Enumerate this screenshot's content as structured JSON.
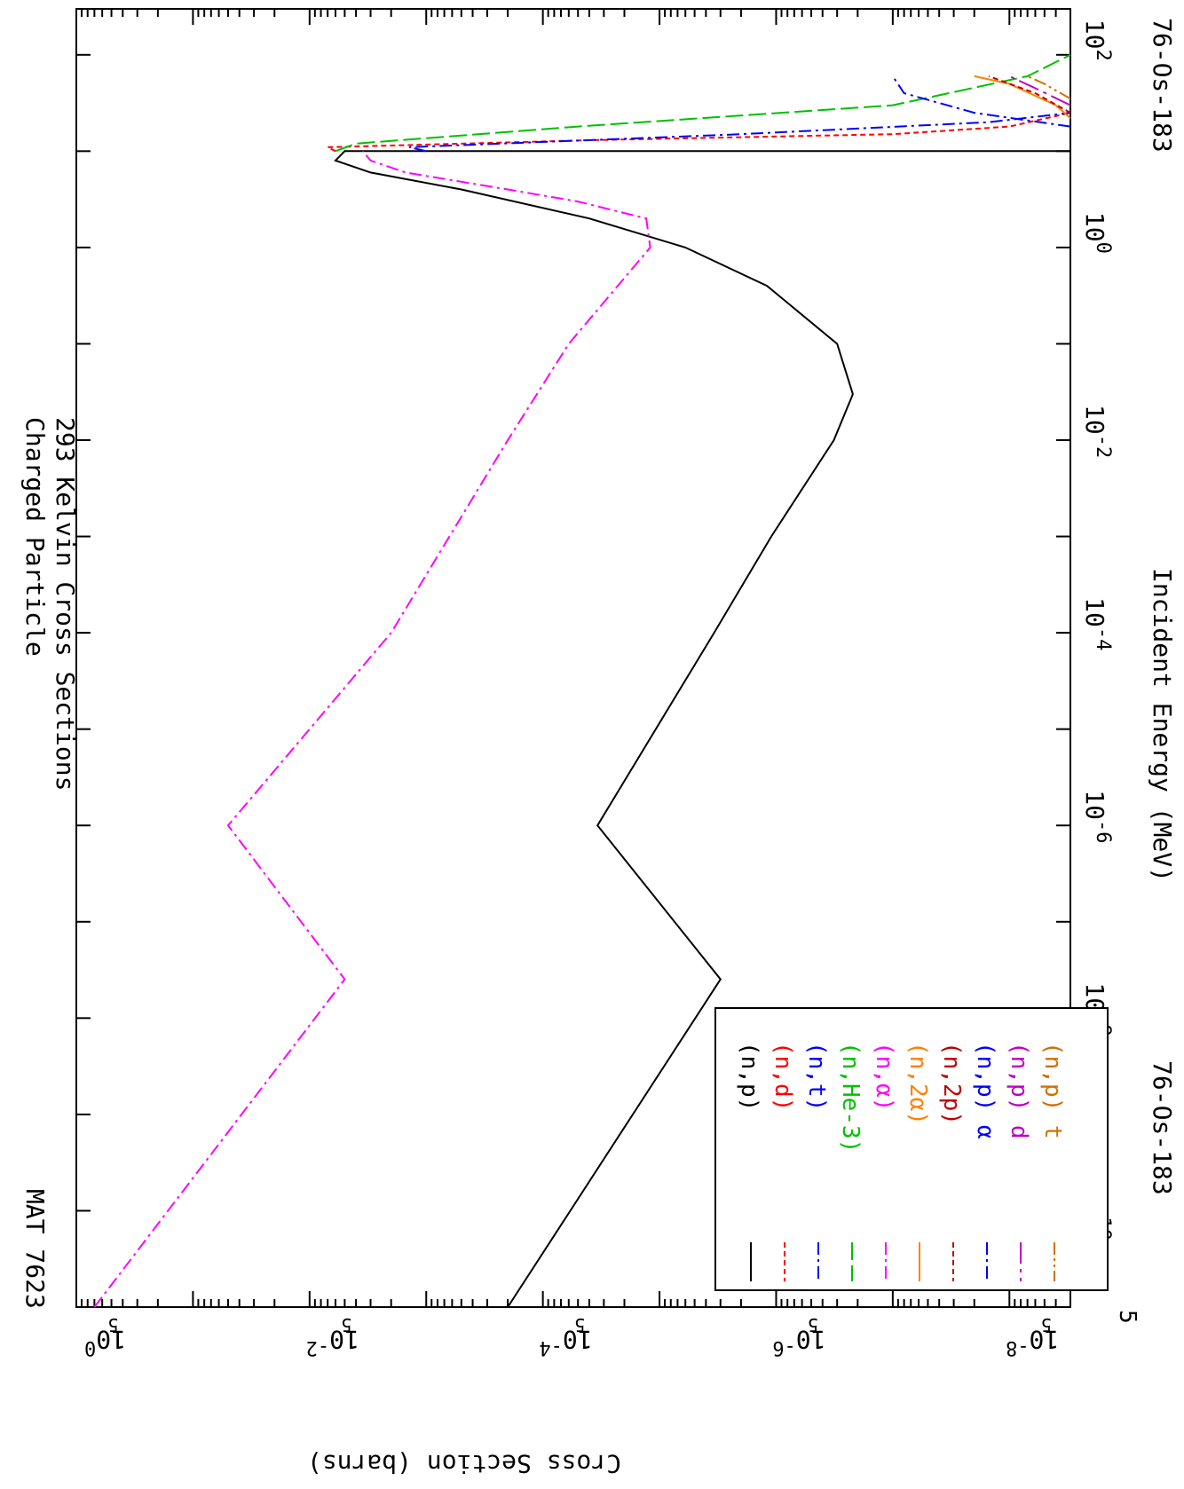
{
  "chart_data": {
    "type": "line",
    "title_line1": "Charged Particle",
    "title_line2": "293 Kelvin Cross Sections",
    "mat_label": "MAT 7623",
    "nuclide_label": "76-Os-183",
    "xlabel": "Incident Energy (MeV)",
    "ylabel": "Cross Section (barns)",
    "x_scale": "log",
    "y_scale": "log",
    "xlim": [
      1e-11,
      300
    ],
    "ylim": [
      3e-09,
      1
    ],
    "x_ticks": [
      {
        "value": 1e-10,
        "base": "10",
        "exp": "-10"
      },
      {
        "value": 1e-08,
        "base": "10",
        "exp": "-8"
      },
      {
        "value": 1e-06,
        "base": "10",
        "exp": "-6"
      },
      {
        "value": 0.0001,
        "base": "10",
        "exp": "-4"
      },
      {
        "value": 0.01,
        "base": "10",
        "exp": "-2"
      },
      {
        "value": 1,
        "base": "10",
        "exp": "0"
      },
      {
        "value": 100,
        "base": "10",
        "exp": "2"
      }
    ],
    "x_corner_label": "5",
    "y_ticks": [
      {
        "value": 1,
        "base": "10",
        "exp": "0"
      },
      {
        "value": 0.01,
        "base": "10",
        "exp": "-2"
      },
      {
        "value": 0.0001,
        "base": "10",
        "exp": "-4"
      },
      {
        "value": 1e-06,
        "base": "10",
        "exp": "-6"
      },
      {
        "value": 1e-08,
        "base": "10",
        "exp": "-8"
      }
    ],
    "y_minor_label": "5",
    "y_minor_label_values": [
      0.5,
      0.005,
      5e-05,
      5e-07,
      5e-09
    ],
    "legend_placement": "lower-left",
    "series": [
      {
        "name": "(n,p)",
        "color": "#000000",
        "dash": "solid",
        "points": [
          [
            1e-11,
            0.0002
          ],
          [
            2.53e-08,
            3e-06
          ],
          [
            1e-06,
            3.4e-05
          ],
          [
            0.0001,
            3.4e-06
          ],
          [
            0.001,
            1.1e-06
          ],
          [
            0.01,
            3.2e-07
          ],
          [
            0.03,
            2.2e-07
          ],
          [
            0.1,
            3e-07
          ],
          [
            0.4,
            1.2e-06
          ],
          [
            1,
            6e-06
          ],
          [
            2,
            4e-05
          ],
          [
            4,
            0.0005
          ],
          [
            6,
            0.003
          ],
          [
            8,
            0.006
          ],
          [
            10,
            0.005
          ],
          [
            10,
            3e-09
          ]
        ]
      },
      {
        "name": "(n,d)",
        "color": "#ff0000",
        "dash": "short",
        "points": [
          [
            10,
            0.006
          ],
          [
            11,
            0.007
          ],
          [
            13,
            4e-05
          ],
          [
            15,
            1e-07
          ],
          [
            18,
            1e-08
          ],
          [
            25,
            3e-09
          ]
        ]
      },
      {
        "name": "(n,t)",
        "color": "#0000ff",
        "dash": "dashdot",
        "points": [
          [
            10,
            0.001
          ],
          [
            11,
            0.0014
          ],
          [
            15,
            2e-06
          ],
          [
            20,
            1.5e-08
          ],
          [
            25,
            3e-09
          ]
        ]
      },
      {
        "name": "(n,He-3)",
        "color": "#00c000",
        "dash": "long",
        "points": [
          [
            10,
            0.006
          ],
          [
            12,
            0.004
          ],
          [
            18,
            5e-05
          ],
          [
            30,
            1e-07
          ],
          [
            60,
            7e-09
          ],
          [
            100,
            3e-09
          ]
        ]
      },
      {
        "name": "(n,α)",
        "color": "#ff00ff",
        "dash": "dashdot",
        "points": [
          [
            1e-11,
            0.7
          ],
          [
            2.53e-08,
            0.005
          ],
          [
            1e-06,
            0.05
          ],
          [
            0.0001,
            0.002
          ],
          [
            0.01,
            0.0002
          ],
          [
            0.1,
            6e-05
          ],
          [
            1,
            1.2e-05
          ],
          [
            2,
            1.3e-05
          ],
          [
            3,
            5e-05
          ],
          [
            4,
            0.0002
          ],
          [
            6,
            0.0015
          ],
          [
            8,
            0.003
          ],
          [
            10,
            0.0035
          ]
        ]
      },
      {
        "name": "(n,2α)",
        "color": "#ff8000",
        "dash": "solid",
        "points": [
          [
            22,
            3e-09
          ],
          [
            30,
            4e-09
          ],
          [
            50,
            1e-08
          ],
          [
            60,
            2e-08
          ]
        ]
      },
      {
        "name": "(n,2p)",
        "color": "#c00000",
        "dash": "short",
        "points": [
          [
            25,
            3e-09
          ],
          [
            40,
            6e-09
          ],
          [
            60,
            1.5e-08
          ]
        ]
      },
      {
        "name": "(n,p) α",
        "color": "#0000ff",
        "dash": "dashdot",
        "points": [
          [
            18,
            3e-09
          ],
          [
            25,
            2e-08
          ],
          [
            40,
            8e-08
          ],
          [
            60,
            1e-07
          ]
        ]
      },
      {
        "name": "(n,p) d",
        "color": "#c000c0",
        "dash": "longdash",
        "points": [
          [
            30,
            3e-09
          ],
          [
            45,
            6e-09
          ],
          [
            60,
            1e-08
          ]
        ]
      },
      {
        "name": "(n,p) t",
        "color": "#d07000",
        "dash": "dashdotdot",
        "points": [
          [
            35,
            3e-09
          ],
          [
            50,
            5e-09
          ],
          [
            60,
            7e-09
          ]
        ]
      }
    ]
  }
}
